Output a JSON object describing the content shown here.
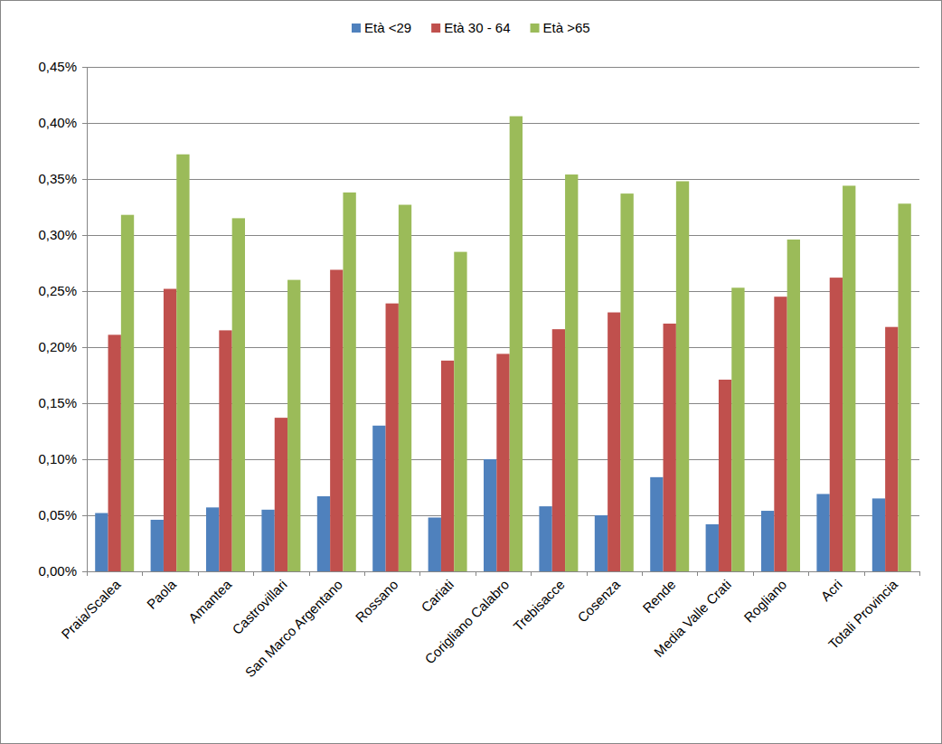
{
  "chart_data": {
    "type": "bar",
    "categories": [
      "Praia/Scalea",
      "Paola",
      "Amantea",
      "Castrovillari",
      "San Marco Argentano",
      "Rossano",
      "Cariati",
      "Corigliano Calabro",
      "Trebisacce",
      "Cosenza",
      "Rende",
      "Media Valle Crati",
      "Rogliano",
      "Acri",
      "Totali Provincia"
    ],
    "series": [
      {
        "name": "Età <29",
        "color": "#4f81bd",
        "values": [
          0.052,
          0.046,
          0.057,
          0.055,
          0.067,
          0.13,
          0.048,
          0.1,
          0.058,
          0.05,
          0.084,
          0.042,
          0.054,
          0.069,
          0.065
        ]
      },
      {
        "name": "Età 30 - 64",
        "color": "#c0504d",
        "values": [
          0.211,
          0.252,
          0.215,
          0.137,
          0.269,
          0.239,
          0.188,
          0.194,
          0.216,
          0.231,
          0.221,
          0.171,
          0.245,
          0.262,
          0.218
        ]
      },
      {
        "name": "Età >65",
        "color": "#9bbb59",
        "values": [
          0.318,
          0.372,
          0.315,
          0.26,
          0.338,
          0.327,
          0.285,
          0.406,
          0.354,
          0.337,
          0.348,
          0.253,
          0.296,
          0.344,
          0.328
        ]
      }
    ],
    "ylim": [
      0,
      0.45
    ],
    "yticks": [
      {
        "value": 0,
        "label": "0,00%"
      },
      {
        "value": 0.05,
        "label": "0,05%"
      },
      {
        "value": 0.1,
        "label": "0,10%"
      },
      {
        "value": 0.15,
        "label": "0,15%"
      },
      {
        "value": 0.2,
        "label": "0,20%"
      },
      {
        "value": 0.25,
        "label": "0,25%"
      },
      {
        "value": 0.3,
        "label": "0,30%"
      },
      {
        "value": 0.35,
        "label": "0,35%"
      },
      {
        "value": 0.4,
        "label": "0,40%"
      },
      {
        "value": 0.45,
        "label": "0,45%"
      }
    ],
    "grid": true,
    "legend": "top"
  }
}
